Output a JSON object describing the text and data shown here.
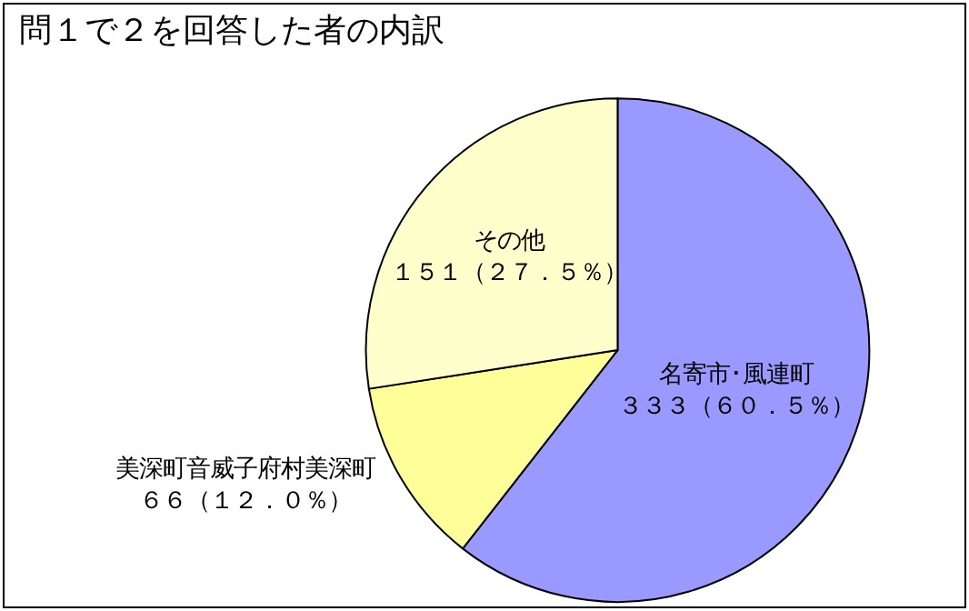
{
  "chart_data": {
    "type": "pie",
    "title": "問１で２を回答した者の内訳",
    "categories": [
      "名寄市･風連町",
      "美深町音威子府村美深町",
      "その他"
    ],
    "values": [
      333,
      66,
      151
    ],
    "value_labels": [
      "３３３（６０．５％）",
      "６６（１２．０％）",
      "１５１（２７．５％）"
    ],
    "colors": [
      "#9999ff",
      "#ffff99",
      "#ffffcc"
    ]
  }
}
